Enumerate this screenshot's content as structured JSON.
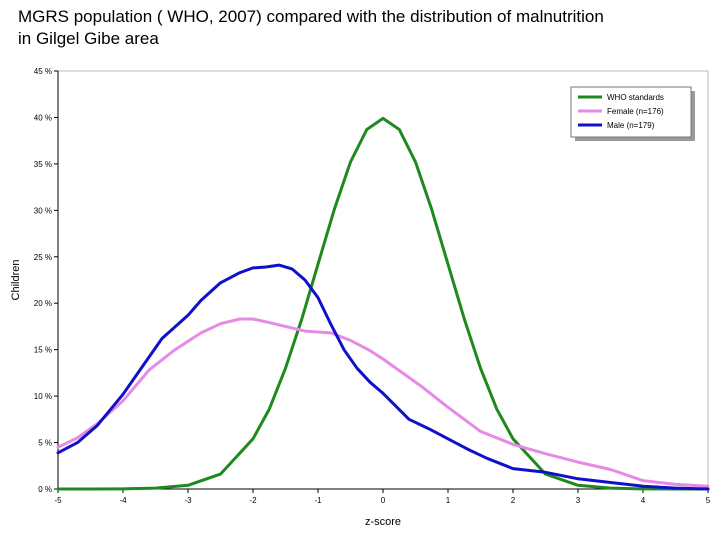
{
  "title_lines": [
    " MGRS population ( WHO, 2007) compared with the distribution of malnutrition",
    "in Gilgel Gibe area"
  ],
  "colors": {
    "who": "#1e8a1e",
    "female": "#e68ae6",
    "male": "#1010c8",
    "axis": "#000000",
    "plot_border": "#b8b8b8"
  },
  "chart_data": {
    "type": "line",
    "title": "MGRS population ( WHO, 2007) compared with the distribution of malnutrition in Gilgel Gibe area",
    "xlabel": "z-score",
    "ylabel": "Children",
    "xlim": [
      -5,
      5
    ],
    "ylim": [
      0,
      45
    ],
    "x_ticks": [
      -5,
      -4,
      -3,
      -2,
      -1,
      0,
      1,
      2,
      3,
      4,
      5
    ],
    "x_tick_labels": [
      "-5",
      "-4",
      "-3",
      "-2",
      "-1",
      "0",
      "1",
      "2",
      "3",
      "4",
      "5"
    ],
    "y_ticks": [
      0,
      5,
      10,
      15,
      20,
      25,
      30,
      35,
      40,
      45
    ],
    "y_tick_labels": [
      "0 %",
      "5 %",
      "10 %",
      "15 %",
      "20 %",
      "25 %",
      "30 %",
      "35 %",
      "40 %",
      "45 %"
    ],
    "grid": false,
    "legend_position": "top-right",
    "series": [
      {
        "name": "WHO standards",
        "color_key": "who",
        "x": [
          -5.0,
          -4.5,
          -4.0,
          -3.5,
          -3.0,
          -2.5,
          -2.0,
          -1.75,
          -1.5,
          -1.25,
          -1.0,
          -0.75,
          -0.5,
          -0.25,
          0.0,
          0.25,
          0.5,
          0.75,
          1.0,
          1.25,
          1.5,
          1.75,
          2.0,
          2.5,
          3.0,
          3.5,
          4.0,
          4.5,
          5.0
        ],
        "y": [
          0.0,
          0.0,
          0.01,
          0.1,
          0.4,
          1.6,
          5.4,
          8.6,
          13.0,
          18.3,
          24.2,
          30.1,
          35.2,
          38.7,
          39.9,
          38.7,
          35.2,
          30.1,
          24.2,
          18.3,
          13.0,
          8.6,
          5.4,
          1.6,
          0.4,
          0.1,
          0.01,
          0.0,
          0.0
        ]
      },
      {
        "name": "Female (n=176)",
        "color_key": "female",
        "x": [
          -5.0,
          -4.7,
          -4.4,
          -4.0,
          -3.6,
          -3.2,
          -2.8,
          -2.5,
          -2.2,
          -2.0,
          -1.8,
          -1.5,
          -1.2,
          -1.0,
          -0.8,
          -0.5,
          -0.2,
          0.0,
          0.3,
          0.6,
          1.0,
          1.5,
          2.0,
          2.5,
          3.0,
          3.5,
          4.0,
          4.5,
          5.0
        ],
        "y": [
          4.5,
          5.5,
          7.0,
          9.5,
          12.8,
          15.0,
          16.8,
          17.8,
          18.3,
          18.3,
          18.0,
          17.5,
          17.0,
          16.9,
          16.8,
          16.0,
          14.9,
          14.0,
          12.5,
          11.0,
          8.8,
          6.2,
          4.8,
          3.8,
          2.9,
          2.1,
          0.9,
          0.5,
          0.3
        ]
      },
      {
        "name": "Male (n=179)",
        "color_key": "male",
        "x": [
          -5.0,
          -4.7,
          -4.4,
          -4.0,
          -3.7,
          -3.4,
          -3.0,
          -2.8,
          -2.5,
          -2.2,
          -2.0,
          -1.8,
          -1.6,
          -1.4,
          -1.2,
          -1.0,
          -0.8,
          -0.6,
          -0.4,
          -0.2,
          0.0,
          0.2,
          0.4,
          0.7,
          1.0,
          1.3,
          1.6,
          2.0,
          2.5,
          3.0,
          3.5,
          4.0,
          4.5,
          5.0
        ],
        "y": [
          3.9,
          5.0,
          6.8,
          10.2,
          13.2,
          16.2,
          18.7,
          20.3,
          22.2,
          23.3,
          23.8,
          23.9,
          24.1,
          23.7,
          22.5,
          20.6,
          17.7,
          15.0,
          13.0,
          11.5,
          10.3,
          8.9,
          7.5,
          6.5,
          5.4,
          4.3,
          3.3,
          2.2,
          1.8,
          1.1,
          0.7,
          0.3,
          0.1,
          0.0
        ]
      }
    ]
  }
}
